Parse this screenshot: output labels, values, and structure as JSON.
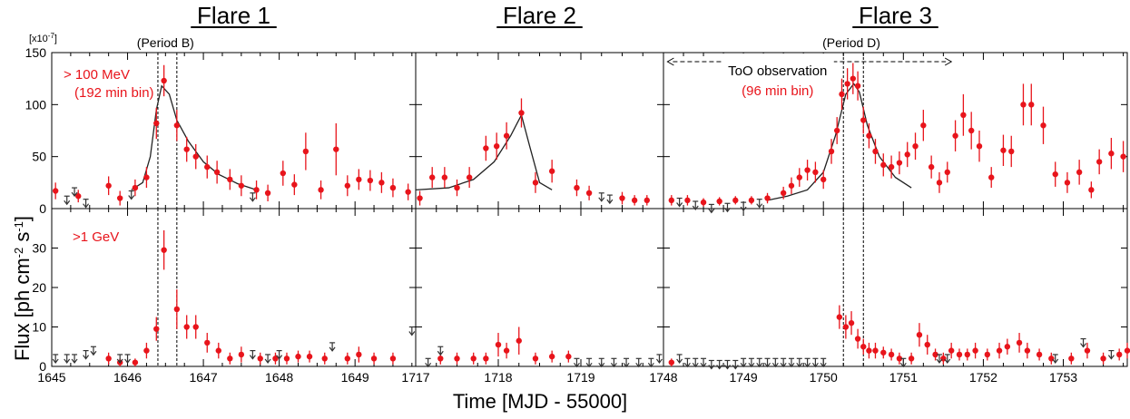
{
  "colors": {
    "detection": "#e8141b",
    "upper_limit": "#333333",
    "model": "#222222",
    "axis": "#000000"
  },
  "chart_data": {
    "type": "scatter",
    "title": "",
    "xlabel": "Time [MJD - 55000]",
    "ylabel": "Flux [ph cm-2 s-1]",
    "ylabel_parts": {
      "main": "Flux [ph cm",
      "sup1": "-2",
      "mid": " s",
      "sup2": "-1",
      "end": "]"
    },
    "scale_note": "[x10-7]",
    "scale_note_parts": {
      "main": "[x10",
      "sup": "-7",
      "end": "]"
    },
    "panels": [
      {
        "name": "Flare 1",
        "xlim": [
          1645,
          1649.8
        ],
        "xticks": [
          1645,
          1646,
          1647,
          1648,
          1649
        ]
      },
      {
        "name": "Flare 2",
        "xlim": [
          1717,
          1720
        ],
        "xticks": [
          1717,
          1718,
          1719
        ]
      },
      {
        "name": "Flare 3",
        "xlim": [
          1748,
          1753.8
        ],
        "xticks": [
          1748,
          1749,
          1750,
          1751,
          1752,
          1753
        ]
      }
    ],
    "rows": [
      {
        "id": "high",
        "ylim": [
          0,
          150
        ],
        "yticks": [
          0,
          50,
          100,
          150
        ],
        "energy_label": "> 100 MeV",
        "bin_label": "(192 min bin)",
        "detections": [
          [
            1645.05,
            17,
            8
          ],
          [
            1645.35,
            12,
            6
          ],
          [
            1645.75,
            22,
            9
          ],
          [
            1645.9,
            10,
            7
          ],
          [
            1646.1,
            20,
            8
          ],
          [
            1646.25,
            30,
            10
          ],
          [
            1646.38,
            82,
            15
          ],
          [
            1646.48,
            123,
            15
          ],
          [
            1646.65,
            80,
            15
          ],
          [
            1646.78,
            57,
            12
          ],
          [
            1646.9,
            50,
            12
          ],
          [
            1647.05,
            40,
            11
          ],
          [
            1647.18,
            35,
            11
          ],
          [
            1647.35,
            28,
            10
          ],
          [
            1647.5,
            22,
            10
          ],
          [
            1647.7,
            18,
            9
          ],
          [
            1647.85,
            15,
            8
          ],
          [
            1648.05,
            34,
            12
          ],
          [
            1648.2,
            23,
            10
          ],
          [
            1648.35,
            55,
            18
          ],
          [
            1648.55,
            18,
            9
          ],
          [
            1648.75,
            57,
            25
          ],
          [
            1648.9,
            22,
            10
          ],
          [
            1649.05,
            28,
            10
          ],
          [
            1649.2,
            27,
            10
          ],
          [
            1649.35,
            25,
            10
          ],
          [
            1649.5,
            20,
            9
          ],
          [
            1649.7,
            16,
            8
          ],
          [
            1717.05,
            10,
            7
          ],
          [
            1717.2,
            30,
            10
          ],
          [
            1717.35,
            30,
            10
          ],
          [
            1717.5,
            20,
            8
          ],
          [
            1717.65,
            30,
            10
          ],
          [
            1717.85,
            58,
            12
          ],
          [
            1717.98,
            60,
            13
          ],
          [
            1718.1,
            70,
            13
          ],
          [
            1718.28,
            92,
            14
          ],
          [
            1718.45,
            25,
            10
          ],
          [
            1718.65,
            36,
            11
          ],
          [
            1718.95,
            20,
            8
          ],
          [
            1719.1,
            15,
            7
          ],
          [
            1719.5,
            10,
            6
          ],
          [
            1719.65,
            8,
            5
          ],
          [
            1719.8,
            8,
            5
          ],
          [
            1748.1,
            8,
            5
          ],
          [
            1748.3,
            8,
            5
          ],
          [
            1748.5,
            6,
            4
          ],
          [
            1748.7,
            7,
            4
          ],
          [
            1748.9,
            8,
            4
          ],
          [
            1749.1,
            8,
            4
          ],
          [
            1749.3,
            10,
            5
          ],
          [
            1749.5,
            15,
            6
          ],
          [
            1749.6,
            22,
            8
          ],
          [
            1749.7,
            30,
            9
          ],
          [
            1749.8,
            37,
            10
          ],
          [
            1749.9,
            35,
            10
          ],
          [
            1750.0,
            28,
            9
          ],
          [
            1750.1,
            55,
            12
          ],
          [
            1750.17,
            75,
            13
          ],
          [
            1750.23,
            110,
            15
          ],
          [
            1750.3,
            120,
            15
          ],
          [
            1750.37,
            125,
            15
          ],
          [
            1750.43,
            118,
            14
          ],
          [
            1750.5,
            85,
            13
          ],
          [
            1750.57,
            70,
            12
          ],
          [
            1750.65,
            55,
            12
          ],
          [
            1750.75,
            42,
            11
          ],
          [
            1750.85,
            40,
            11
          ],
          [
            1750.95,
            44,
            11
          ],
          [
            1751.05,
            52,
            12
          ],
          [
            1751.15,
            60,
            13
          ],
          [
            1751.25,
            80,
            15
          ],
          [
            1751.35,
            40,
            11
          ],
          [
            1751.45,
            25,
            10
          ],
          [
            1751.55,
            35,
            10
          ],
          [
            1751.65,
            70,
            15
          ],
          [
            1751.75,
            90,
            20
          ],
          [
            1751.85,
            75,
            18
          ],
          [
            1751.95,
            60,
            15
          ],
          [
            1752.1,
            30,
            10
          ],
          [
            1752.25,
            56,
            15
          ],
          [
            1752.35,
            55,
            15
          ],
          [
            1752.5,
            100,
            20
          ],
          [
            1752.6,
            100,
            20
          ],
          [
            1752.75,
            80,
            18
          ],
          [
            1752.9,
            33,
            12
          ],
          [
            1753.05,
            25,
            10
          ],
          [
            1753.2,
            35,
            12
          ],
          [
            1753.35,
            18,
            8
          ],
          [
            1753.45,
            45,
            12
          ],
          [
            1753.6,
            53,
            15
          ],
          [
            1753.75,
            50,
            15
          ]
        ],
        "upper_limits": [
          [
            1645.2,
            12
          ],
          [
            1645.3,
            20
          ],
          [
            1645.45,
            9
          ],
          [
            1646.05,
            17
          ],
          [
            1647.65,
            15
          ],
          [
            1719.25,
            15
          ],
          [
            1719.35,
            13
          ],
          [
            1748.2,
            10
          ],
          [
            1748.4,
            7
          ],
          [
            1748.6,
            4
          ],
          [
            1748.8,
            5
          ],
          [
            1749.0,
            6
          ],
          [
            1749.2,
            9
          ]
        ],
        "model_curve": [
          [
            1646.05,
            18
          ],
          [
            1646.2,
            25
          ],
          [
            1646.3,
            50
          ],
          [
            1646.38,
            95
          ],
          [
            1646.45,
            118
          ],
          [
            1646.55,
            110
          ],
          [
            1646.65,
            85
          ],
          [
            1646.8,
            65
          ],
          [
            1647.0,
            45
          ],
          [
            1647.2,
            33
          ],
          [
            1647.45,
            24
          ],
          [
            1647.7,
            18
          ],
          [
            1717.0,
            18
          ],
          [
            1717.4,
            20
          ],
          [
            1717.7,
            28
          ],
          [
            1717.95,
            45
          ],
          [
            1718.15,
            70
          ],
          [
            1718.28,
            90
          ],
          [
            1718.38,
            60
          ],
          [
            1718.5,
            25
          ],
          [
            1718.65,
            18
          ],
          [
            1749.3,
            8
          ],
          [
            1749.55,
            12
          ],
          [
            1749.8,
            18
          ],
          [
            1750.0,
            35
          ],
          [
            1750.15,
            70
          ],
          [
            1750.28,
            110
          ],
          [
            1750.38,
            120
          ],
          [
            1750.45,
            112
          ],
          [
            1750.55,
            80
          ],
          [
            1750.7,
            50
          ],
          [
            1750.9,
            30
          ],
          [
            1751.1,
            20
          ]
        ],
        "vlines": [
          1646.4,
          1646.65,
          1750.25,
          1750.5
        ],
        "period_labels": [
          {
            "x": 1646.5,
            "text": "(Period B)"
          },
          {
            "x": 1750.35,
            "text": "(Period D)"
          }
        ],
        "too": {
          "x_start": 1748.05,
          "x_end": 1751.6,
          "label": "ToO observation",
          "bin_label": "(96 min bin)"
        }
      },
      {
        "id": "low",
        "ylim": [
          0,
          40
        ],
        "yticks": [
          0,
          10,
          20,
          30
        ],
        "energy_label": ">1 GeV",
        "detections": [
          [
            1645.75,
            2,
            1.5
          ],
          [
            1645.9,
            1,
            1
          ],
          [
            1646.1,
            1,
            1
          ],
          [
            1646.25,
            4,
            2
          ],
          [
            1646.38,
            9.5,
            3
          ],
          [
            1646.48,
            29.5,
            5
          ],
          [
            1646.65,
            14.5,
            5
          ],
          [
            1646.78,
            10,
            3
          ],
          [
            1646.9,
            10,
            3
          ],
          [
            1647.05,
            6,
            2.5
          ],
          [
            1647.2,
            4,
            2
          ],
          [
            1647.35,
            2,
            1.5
          ],
          [
            1647.5,
            3,
            2
          ],
          [
            1647.75,
            2,
            1.5
          ],
          [
            1647.95,
            2,
            1.5
          ],
          [
            1648.1,
            2,
            1.5
          ],
          [
            1648.25,
            2.5,
            1.5
          ],
          [
            1648.4,
            2.5,
            1.5
          ],
          [
            1648.6,
            2,
            1.5
          ],
          [
            1648.9,
            2,
            1.5
          ],
          [
            1649.05,
            3,
            2
          ],
          [
            1649.25,
            2,
            1.5
          ],
          [
            1649.5,
            2,
            1.5
          ],
          [
            1717.3,
            2,
            1.5
          ],
          [
            1717.5,
            2,
            1.5
          ],
          [
            1717.7,
            2,
            1.5
          ],
          [
            1717.85,
            2,
            1.5
          ],
          [
            1718.0,
            5.5,
            3
          ],
          [
            1718.1,
            4,
            2
          ],
          [
            1718.25,
            6.5,
            3.5
          ],
          [
            1718.45,
            2,
            1.5
          ],
          [
            1718.65,
            2.5,
            1.5
          ],
          [
            1718.85,
            2.5,
            1.5
          ],
          [
            1748.1,
            1,
            1
          ],
          [
            1750.2,
            12.5,
            3
          ],
          [
            1750.28,
            10,
            3
          ],
          [
            1750.35,
            11,
            3
          ],
          [
            1750.43,
            7,
            2.5
          ],
          [
            1750.5,
            5,
            2
          ],
          [
            1750.57,
            4,
            2
          ],
          [
            1750.65,
            4,
            2
          ],
          [
            1750.75,
            3.5,
            1.5
          ],
          [
            1750.85,
            3,
            1.5
          ],
          [
            1750.95,
            2,
            1.5
          ],
          [
            1751.1,
            2,
            1.5
          ],
          [
            1751.2,
            8,
            3
          ],
          [
            1751.3,
            5.5,
            2.5
          ],
          [
            1751.4,
            3,
            1.5
          ],
          [
            1751.5,
            2,
            1.5
          ],
          [
            1751.6,
            4,
            2
          ],
          [
            1751.7,
            3,
            1.5
          ],
          [
            1751.8,
            3,
            1.5
          ],
          [
            1751.9,
            4,
            2
          ],
          [
            1752.05,
            3,
            1.5
          ],
          [
            1752.2,
            4,
            2
          ],
          [
            1752.3,
            5,
            2
          ],
          [
            1752.45,
            6,
            2.5
          ],
          [
            1752.55,
            4,
            2
          ],
          [
            1752.7,
            3,
            1.5
          ],
          [
            1752.85,
            2,
            1.5
          ],
          [
            1753.1,
            2,
            1.5
          ],
          [
            1753.3,
            4,
            2
          ],
          [
            1753.5,
            2,
            1.5
          ],
          [
            1753.7,
            3,
            1.5
          ],
          [
            1753.8,
            4,
            2
          ]
        ],
        "upper_limits": [
          [
            1645.05,
            3
          ],
          [
            1645.2,
            3
          ],
          [
            1645.3,
            3
          ],
          [
            1645.45,
            4
          ],
          [
            1645.55,
            5
          ],
          [
            1645.9,
            3
          ],
          [
            1646.0,
            3
          ],
          [
            1647.65,
            4
          ],
          [
            1647.85,
            3
          ],
          [
            1648.0,
            4
          ],
          [
            1648.7,
            6
          ],
          [
            1649.75,
            10
          ],
          [
            1717.15,
            2
          ],
          [
            1717.3,
            5
          ],
          [
            1718.95,
            2
          ],
          [
            1719.1,
            2
          ],
          [
            1719.25,
            2
          ],
          [
            1719.4,
            2
          ],
          [
            1719.55,
            2
          ],
          [
            1719.7,
            2
          ],
          [
            1719.85,
            2
          ],
          [
            1719.95,
            3
          ],
          [
            1748.2,
            3
          ],
          [
            1748.3,
            2
          ],
          [
            1748.4,
            2
          ],
          [
            1748.5,
            2
          ],
          [
            1748.6,
            1.5
          ],
          [
            1748.7,
            1.5
          ],
          [
            1748.8,
            1.5
          ],
          [
            1748.9,
            1.5
          ],
          [
            1749.0,
            2
          ],
          [
            1749.1,
            2
          ],
          [
            1749.2,
            2
          ],
          [
            1749.3,
            2
          ],
          [
            1749.4,
            2
          ],
          [
            1749.5,
            2
          ],
          [
            1749.6,
            2
          ],
          [
            1749.7,
            2
          ],
          [
            1749.8,
            2
          ],
          [
            1749.9,
            2
          ],
          [
            1750.0,
            2
          ],
          [
            1751.0,
            2
          ],
          [
            1751.45,
            3
          ],
          [
            1751.55,
            3
          ],
          [
            1752.9,
            3
          ],
          [
            1753.25,
            7
          ],
          [
            1753.6,
            4
          ]
        ],
        "vlines": [
          1646.4,
          1646.65,
          1750.25,
          1750.5
        ]
      }
    ]
  }
}
